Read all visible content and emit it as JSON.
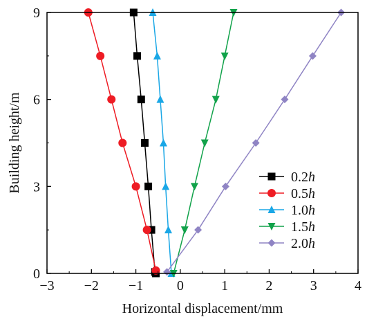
{
  "chart_data": {
    "type": "line",
    "title": "",
    "xlabel": "Horizontal displacement/mm",
    "ylabel": "Building height/m",
    "xlim": [
      -3,
      4
    ],
    "ylim": [
      0,
      9
    ],
    "xticks": [
      "−3",
      "−2",
      "−1",
      "0",
      "1",
      "2",
      "3",
      "4"
    ],
    "yticks": [
      "0",
      "3",
      "6",
      "9"
    ],
    "grid": false,
    "legend_position": "lower-right",
    "series": [
      {
        "name_prefix": "0.2",
        "name_suffix": "h",
        "color": "#000000",
        "marker": "square",
        "points": [
          [
            -0.55,
            0
          ],
          [
            -0.57,
            0.05
          ],
          [
            -0.65,
            1.5
          ],
          [
            -0.72,
            3
          ],
          [
            -0.8,
            4.5
          ],
          [
            -0.88,
            6
          ],
          [
            -0.97,
            7.5
          ],
          [
            -1.05,
            9
          ]
        ]
      },
      {
        "name_prefix": "0.5",
        "name_suffix": "h",
        "color": "#ee1c24",
        "marker": "circle",
        "points": [
          [
            -0.55,
            0.1
          ],
          [
            -0.75,
            1.5
          ],
          [
            -1.0,
            3
          ],
          [
            -1.3,
            4.5
          ],
          [
            -1.55,
            6
          ],
          [
            -1.8,
            7.5
          ],
          [
            -2.07,
            9
          ]
        ]
      },
      {
        "name_prefix": "1.0",
        "name_suffix": "h",
        "color": "#1aa7e6",
        "marker": "triangle-up",
        "points": [
          [
            -0.2,
            0
          ],
          [
            -0.27,
            1.5
          ],
          [
            -0.33,
            3
          ],
          [
            -0.38,
            4.5
          ],
          [
            -0.45,
            6
          ],
          [
            -0.52,
            7.5
          ],
          [
            -0.62,
            9
          ]
        ]
      },
      {
        "name_prefix": "1.5",
        "name_suffix": "h",
        "color": "#11a24a",
        "marker": "triangle-down",
        "points": [
          [
            -0.15,
            0
          ],
          [
            0.1,
            1.5
          ],
          [
            0.32,
            3
          ],
          [
            0.55,
            4.5
          ],
          [
            0.8,
            6
          ],
          [
            1.0,
            7.5
          ],
          [
            1.2,
            9
          ]
        ]
      },
      {
        "name_prefix": "2.0",
        "name_suffix": "h",
        "color": "#8f84c4",
        "marker": "diamond",
        "points": [
          [
            -0.3,
            0.05
          ],
          [
            0.4,
            1.5
          ],
          [
            1.02,
            3
          ],
          [
            1.7,
            4.5
          ],
          [
            2.35,
            6
          ],
          [
            2.98,
            7.5
          ],
          [
            3.62,
            9
          ]
        ]
      }
    ]
  }
}
